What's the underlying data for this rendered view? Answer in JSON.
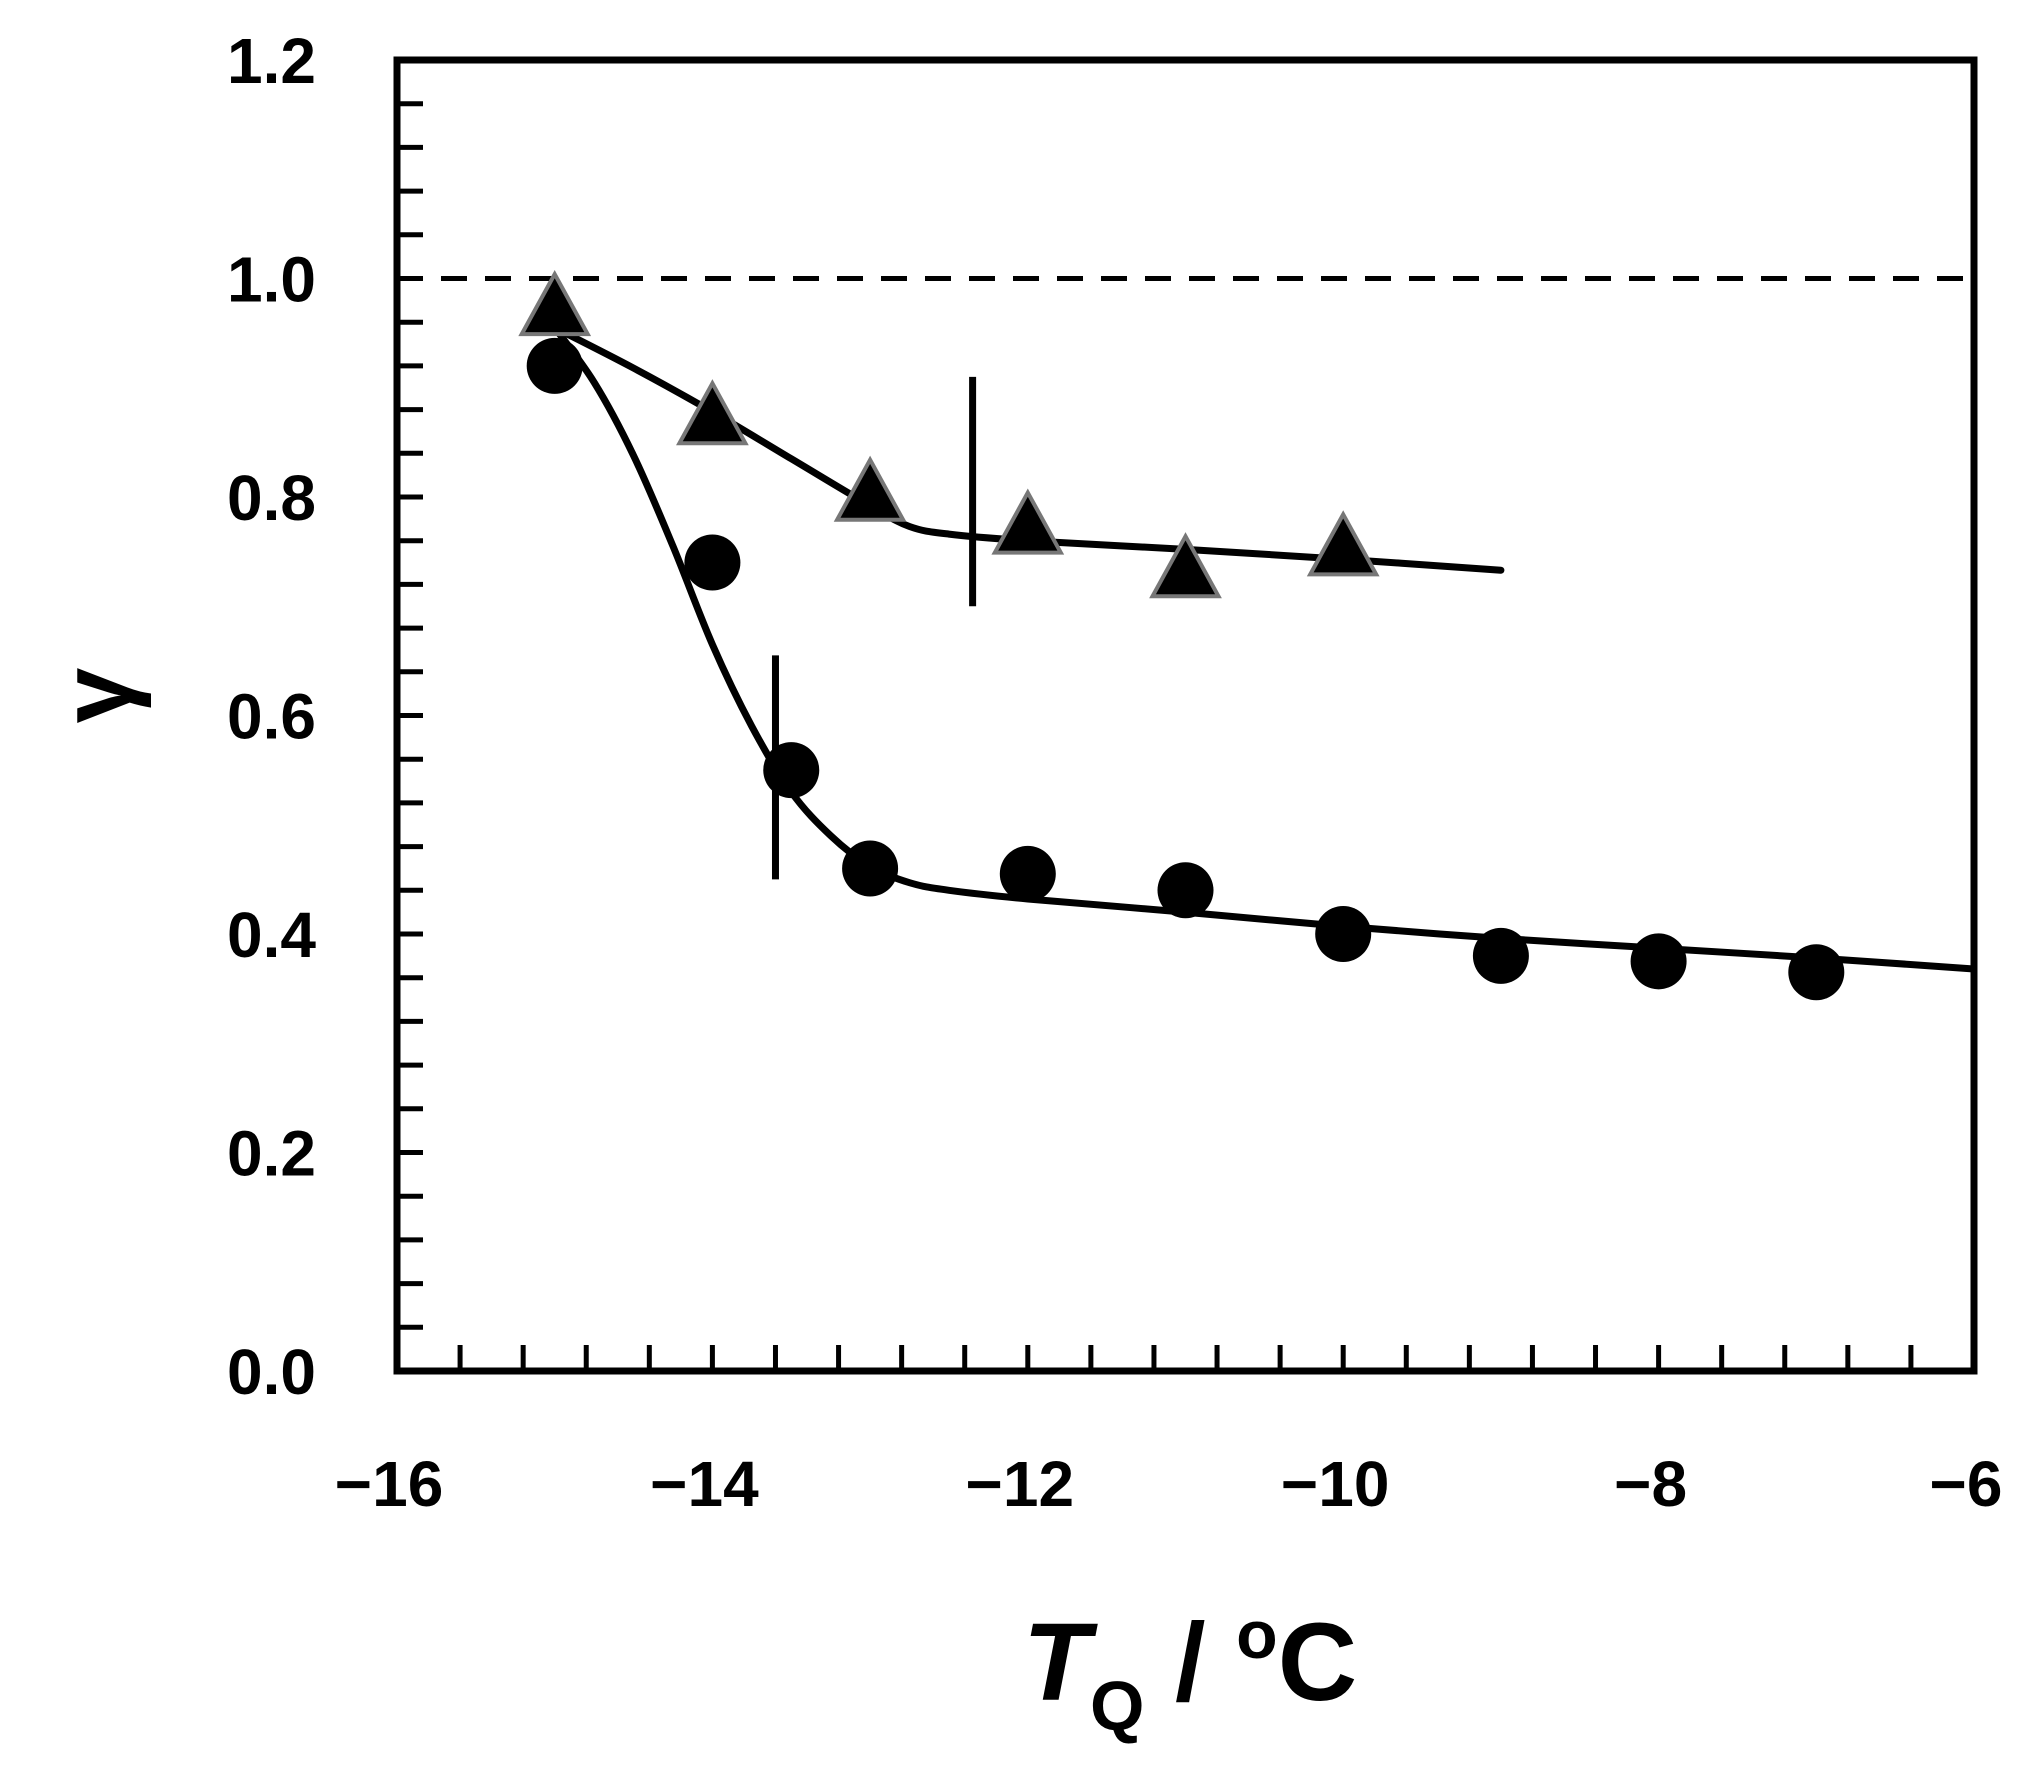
{
  "chart_data": {
    "type": "scatter",
    "title": "",
    "xlabel": {
      "main": "T",
      "sub": "Q",
      "rest": " / ",
      "unit_sup": "o",
      "unit": "C"
    },
    "ylabel": "γ",
    "xlim": [
      -16,
      -6
    ],
    "ylim": [
      0.0,
      1.2
    ],
    "x_ticks": [
      -16,
      -14,
      -12,
      -10,
      -8,
      -6
    ],
    "x_tick_labels": [
      "−16",
      "−14",
      "−12",
      "−10",
      "−8",
      "−6"
    ],
    "y_ticks": [
      0.0,
      0.2,
      0.4,
      0.6,
      0.8,
      1.0,
      1.2
    ],
    "y_tick_labels": [
      "0.0",
      "0.2",
      "0.4",
      "0.6",
      "0.8",
      "1.0",
      "1.2"
    ],
    "x_minor_step": 0.4,
    "y_minor_step": 0.04,
    "grid": false,
    "reference_line": {
      "y": 1.0,
      "style": "dashed"
    },
    "series": [
      {
        "marker": "triangle",
        "color": "#000000",
        "edge_color": "#777777",
        "x": [
          -15,
          -14,
          -13,
          -12,
          -11,
          -10
        ],
        "y": [
          0.97,
          0.87,
          0.8,
          0.77,
          0.73,
          0.75
        ],
        "fit_curve": {
          "x": [
            -15.0,
            -14.5,
            -14.0,
            -13.5,
            -13.0,
            -12.75,
            -12.5,
            -12.0,
            -11.0,
            -10.0,
            -9.0
          ],
          "y": [
            0.955,
            0.918,
            0.878,
            0.835,
            0.792,
            0.773,
            0.766,
            0.76,
            0.752,
            0.743,
            0.733
          ]
        },
        "marker_line_x": -12.35,
        "marker_line_range": [
          0.7,
          0.91
        ]
      },
      {
        "marker": "circle",
        "color": "#000000",
        "x": [
          -15,
          -14,
          -13.5,
          -13,
          -12,
          -11,
          -10,
          -9,
          -8,
          -7
        ],
        "y": [
          0.92,
          0.74,
          0.55,
          0.46,
          0.455,
          0.44,
          0.4,
          0.38,
          0.375,
          0.365
        ],
        "fit_curve": {
          "x": [
            -15.0,
            -14.75,
            -14.5,
            -14.25,
            -14.0,
            -13.75,
            -13.5,
            -13.25,
            -13.0,
            -12.75,
            -12.5,
            -12.0,
            -11.0,
            -10.0,
            -9.0,
            -8.0,
            -7.0,
            -6.0
          ],
          "y": [
            0.955,
            0.905,
            0.838,
            0.755,
            0.665,
            0.59,
            0.53,
            0.49,
            0.462,
            0.447,
            0.44,
            0.432,
            0.42,
            0.407,
            0.396,
            0.387,
            0.378,
            0.368
          ]
        },
        "marker_line_x": -13.6,
        "marker_line_range": [
          0.45,
          0.655
        ]
      }
    ]
  }
}
